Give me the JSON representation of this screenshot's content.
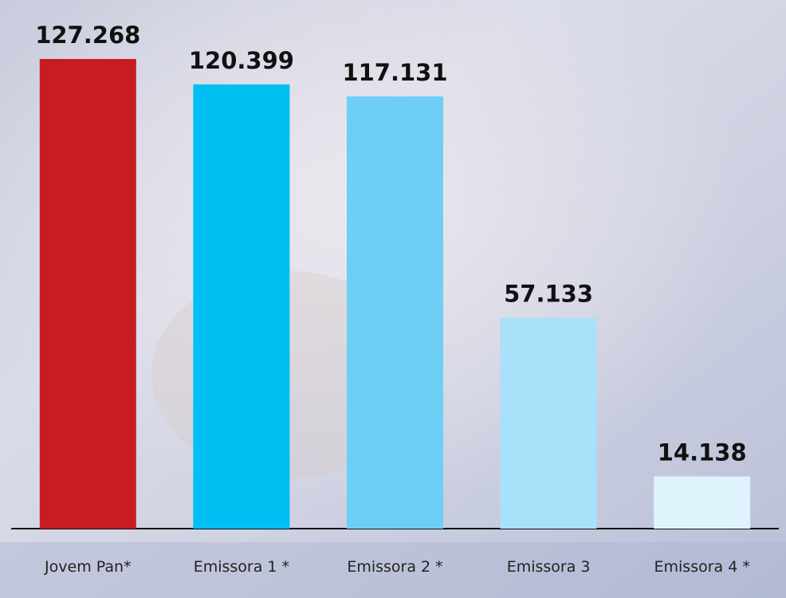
{
  "chart_data": {
    "type": "bar",
    "categories": [
      "Jovem Pan*",
      "Emissora 1 *",
      "Emissora 2 *",
      "Emissora 3",
      "Emissora 4 *"
    ],
    "values": [
      127268,
      120399,
      117131,
      57133,
      14138
    ],
    "value_labels": [
      "127.268",
      "120.399",
      "117.131",
      "57.133",
      "14.138"
    ],
    "colors": [
      "#c71c22",
      "#00bff2",
      "#6dcff6",
      "#a9e0fa",
      "#dff3fc"
    ]
  }
}
